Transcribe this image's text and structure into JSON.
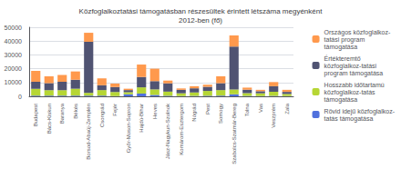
{
  "chart_data": {
    "type": "bar",
    "title": "Közfoglalkoztatási támogatásban részesültek érintett létszáma megyénként\n2012-ben (fő)",
    "categories": [
      "Budapest",
      "Bács-Kiskun",
      "Baranya",
      "Békés",
      "Borsod-Abaúj-Zemplén",
      "Csongrád",
      "Fejér",
      "Győr-Moson-Sopron",
      "Hajdú-Bihar",
      "Heves",
      "Jász-Nagykun-Szolnok",
      "Komárom-Esztergom",
      "Nógrád",
      "Pest",
      "Somogy",
      "Szabolcs-Szatmár-Bereg",
      "Tolna",
      "Vas",
      "Veszprém",
      "Zala"
    ],
    "series": [
      {
        "name": "Rövid idejű közfoglalkoz-\ntatás támogatása",
        "values": [
          500,
          500,
          500,
          500,
          500,
          500,
          200,
          1500,
          2000,
          1000,
          400,
          200,
          300,
          400,
          500,
          1500,
          300,
          200,
          300,
          200
        ]
      },
      {
        "name": "Hosszabb időtartamú\nközfoglalkoz-tatás\ntámogatása",
        "values": [
          5000,
          4000,
          4000,
          5000,
          2000,
          4000,
          3000,
          1500,
          4500,
          4000,
          3000,
          2000,
          2500,
          3500,
          4000,
          3500,
          2000,
          2000,
          3000,
          1500
        ]
      },
      {
        "name": "Értékteremtő\nközfoglalkoz-tatási\nprogram támogatása",
        "values": [
          5000,
          5000,
          6000,
          6500,
          37000,
          3500,
          3500,
          1500,
          7500,
          6000,
          6000,
          2500,
          3000,
          3000,
          5000,
          31000,
          2500,
          1500,
          4000,
          1500
        ]
      },
      {
        "name": "Országos közfoglalkoz-\ntatási program\ntámogatása",
        "values": [
          8000,
          5000,
          5000,
          6000,
          6500,
          5000,
          2500,
          1000,
          9000,
          9000,
          2000,
          1000,
          1500,
          1500,
          5000,
          8000,
          1500,
          1000,
          3000,
          1500
        ]
      }
    ],
    "stacked": true,
    "ylim": [
      0,
      50000
    ],
    "yticks": [
      0,
      10000,
      20000,
      30000,
      40000,
      50000
    ],
    "grid": true,
    "legend": "right"
  }
}
